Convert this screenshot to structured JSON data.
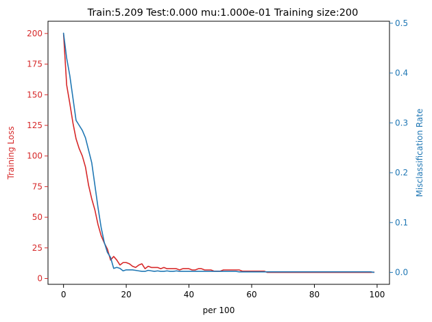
{
  "chart_data": {
    "type": "line",
    "title": "Train:5.209 Test:0.000 mu:1.000e-01 Training size:200",
    "xlabel": "per 100",
    "ylabel_left": "Training Loss",
    "ylabel_right": "Misclassification Rate",
    "xlim": [
      -4.95,
      103.95
    ],
    "ylim_left": [
      -4.75,
      210
    ],
    "ylim_right": [
      -0.024,
      0.504
    ],
    "x_ticks": [
      0,
      20,
      40,
      60,
      80,
      100
    ],
    "y_ticks_left": [
      0,
      25,
      50,
      75,
      100,
      125,
      150,
      175,
      200
    ],
    "y_ticks_right": [
      0.0,
      0.1,
      0.2,
      0.3,
      0.4,
      0.5
    ],
    "grid": false,
    "colors": {
      "left": "#d62728",
      "right": "#1f77b4",
      "axes": "#000000"
    },
    "series": [
      {
        "axis": "left",
        "color": "#d62728",
        "values": [
          200,
          158,
          143,
          127,
          114,
          106,
          100,
          91,
          76,
          65,
          56,
          44,
          35,
          29,
          24,
          15,
          18,
          15,
          11,
          13,
          13,
          12,
          10,
          9,
          11,
          12,
          8,
          10,
          9,
          9,
          9,
          8,
          9,
          8,
          8,
          8,
          8,
          7,
          8,
          8,
          8,
          7,
          7,
          8,
          8,
          7,
          7,
          7,
          6,
          6,
          6,
          7,
          7,
          7,
          7,
          7,
          7,
          6,
          6,
          6,
          6,
          6,
          6,
          6,
          6,
          5,
          5,
          5,
          5,
          5,
          5,
          5,
          5,
          5,
          5,
          5,
          5,
          5,
          5,
          5,
          5,
          5,
          5,
          5,
          5,
          5,
          5,
          5,
          5,
          5,
          5,
          5,
          5,
          5,
          5,
          5,
          5,
          5,
          5,
          5.209
        ]
      },
      {
        "axis": "right",
        "color": "#1f77b4",
        "values": [
          0.48,
          0.43,
          0.395,
          0.35,
          0.305,
          0.295,
          0.285,
          0.27,
          0.245,
          0.22,
          0.175,
          0.13,
          0.09,
          0.06,
          0.04,
          0.03,
          0.008,
          0.01,
          0.008,
          0.003,
          0.005,
          0.005,
          0.005,
          0.004,
          0.003,
          0.002,
          0.002,
          0.004,
          0.003,
          0.002,
          0.003,
          0.002,
          0.002,
          0.003,
          0.002,
          0.002,
          0.003,
          0.002,
          0.002,
          0.002,
          0.002,
          0.002,
          0.002,
          0.002,
          0.002,
          0.002,
          0.002,
          0.002,
          0.002,
          0.002,
          0.002,
          0.002,
          0.002,
          0.002,
          0.002,
          0.002,
          0.001,
          0.001,
          0.001,
          0.001,
          0.001,
          0.001,
          0.001,
          0.001,
          0.001,
          0.001,
          0.001,
          0.001,
          0.001,
          0.001,
          0.001,
          0.001,
          0.001,
          0.001,
          0.001,
          0.001,
          0.001,
          0.001,
          0.001,
          0.001,
          0.001,
          0.001,
          0.001,
          0.001,
          0.001,
          0.001,
          0.001,
          0.001,
          0.001,
          0.001,
          0.001,
          0.001,
          0.001,
          0.001,
          0.001,
          0.001,
          0.001,
          0.001,
          0.001,
          0.0
        ]
      }
    ]
  }
}
